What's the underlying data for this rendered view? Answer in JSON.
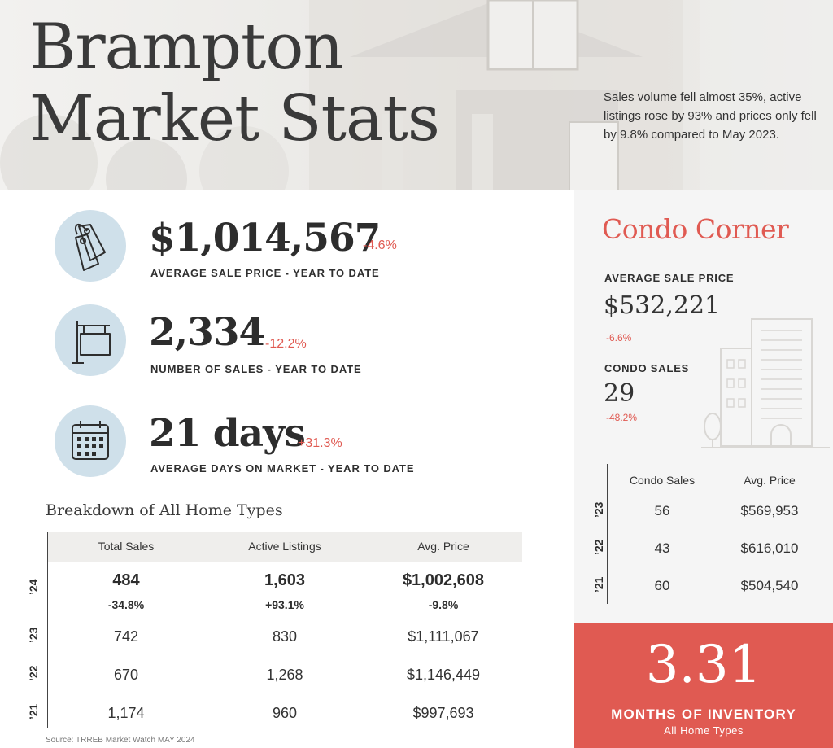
{
  "header": {
    "title_line1": "Brampton",
    "title_line2": "Market Stats",
    "intro": "Sales volume fell almost 35%, active listings rose by 93% and prices only fell by 9.8% compared to May 2023."
  },
  "stats": [
    {
      "icon": "price-tag-icon",
      "value": "$1,014,567",
      "change": "-4.6%",
      "label": "AVERAGE SALE PRICE - YEAR TO DATE"
    },
    {
      "icon": "for-sale-sign-icon",
      "value": "2,334",
      "change": "-12.2%",
      "label": "NUMBER OF SALES - YEAR TO DATE"
    },
    {
      "icon": "calendar-icon",
      "value": "21 days",
      "change": "+31.3%",
      "label": "AVERAGE DAYS ON MARKET - YEAR TO DATE"
    }
  ],
  "breakdown": {
    "title": "Breakdown of All Home Types",
    "columns": [
      "Total Sales",
      "Active Listings",
      "Avg. Price"
    ],
    "rows": [
      {
        "year": "’24",
        "values": [
          "484",
          "1,603",
          "$1,002,608"
        ],
        "changes": [
          "-34.8%",
          "+93.1%",
          "-9.8%"
        ]
      },
      {
        "year": "’23",
        "values": [
          "742",
          "830",
          "$1,111,067"
        ]
      },
      {
        "year": "’22",
        "values": [
          "670",
          "1,268",
          "$1,146,449"
        ]
      },
      {
        "year": "’21",
        "values": [
          "1,174",
          "960",
          "$997,693"
        ]
      }
    ],
    "source": "Source: TRREB Market Watch MAY 2024"
  },
  "condo": {
    "title": "Condo Corner",
    "avg_price_label": "AVERAGE SALE PRICE",
    "avg_price_value": "$532,221",
    "avg_price_change": "-6.6%",
    "sales_label": "CONDO SALES",
    "sales_value": "29",
    "sales_change": "-48.2%",
    "table": {
      "columns": [
        "Condo Sales",
        "Avg. Price"
      ],
      "rows": [
        {
          "year": "’23",
          "values": [
            "56",
            "$569,953"
          ]
        },
        {
          "year": "’22",
          "values": [
            "43",
            "$616,010"
          ]
        },
        {
          "year": "’21",
          "values": [
            "60",
            "$504,540"
          ]
        }
      ]
    }
  },
  "inventory": {
    "value": "3.31",
    "label": "MONTHS OF INVENTORY",
    "sublabel": "All Home Types"
  },
  "colors": {
    "accent": "#e05a52",
    "icon_circle": "#cfe0ea",
    "panel": "#f5f5f5",
    "header_bg": "#ecebe8"
  }
}
